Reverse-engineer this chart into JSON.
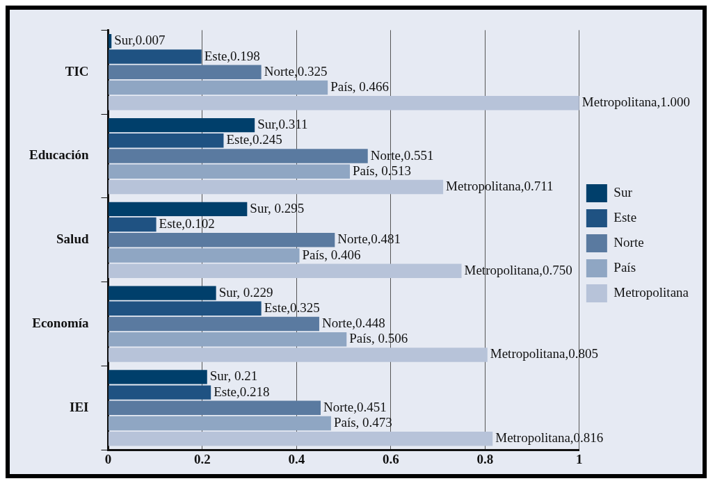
{
  "chart_data": {
    "type": "bar",
    "orientation": "horizontal",
    "categories": [
      "TIC",
      "Educación",
      "Salud",
      "Economía",
      "IEI"
    ],
    "series": [
      {
        "name": "Sur",
        "color": "#003f6b",
        "values": [
          0.007,
          0.311,
          0.295,
          0.229,
          0.21
        ],
        "value_labels": [
          "Sur,0.007",
          "Sur,0.311",
          "Sur, 0.295",
          "Sur, 0.229",
          "Sur, 0.21"
        ]
      },
      {
        "name": "Este",
        "color": "#1f5282",
        "values": [
          0.198,
          0.245,
          0.102,
          0.325,
          0.218
        ],
        "value_labels": [
          "Este,0.198",
          "Este,0.245",
          "Este,0.102",
          "Este,0.325",
          "Este,0.218"
        ]
      },
      {
        "name": "Norte",
        "color": "#5a7aa0",
        "values": [
          0.325,
          0.551,
          0.481,
          0.448,
          0.451
        ],
        "value_labels": [
          "Norte,0.325",
          "Norte,0.551",
          "Norte,0.481",
          "Norte,0.448",
          "Norte,0.451"
        ]
      },
      {
        "name": "País",
        "color": "#8fa6c3",
        "values": [
          0.466,
          0.513,
          0.406,
          0.506,
          0.473
        ],
        "value_labels": [
          "País, 0.466",
          "País, 0.513",
          "País, 0.406",
          "País, 0.506",
          "País, 0.473"
        ]
      },
      {
        "name": "Metropolitana",
        "color": "#b7c3d9",
        "values": [
          1.0,
          0.711,
          0.75,
          0.805,
          0.816
        ],
        "value_labels": [
          "Metropolitana,1.000",
          "Metropolitana,0.711",
          "Metropolitana,0.750",
          "Metropolitana,0.805",
          "Metropolitana,0.816"
        ]
      }
    ],
    "xlim": [
      0,
      1
    ],
    "xticks": [
      0,
      0.2,
      0.4,
      0.6,
      0.8,
      1
    ],
    "grid": "x",
    "legend": "right"
  }
}
